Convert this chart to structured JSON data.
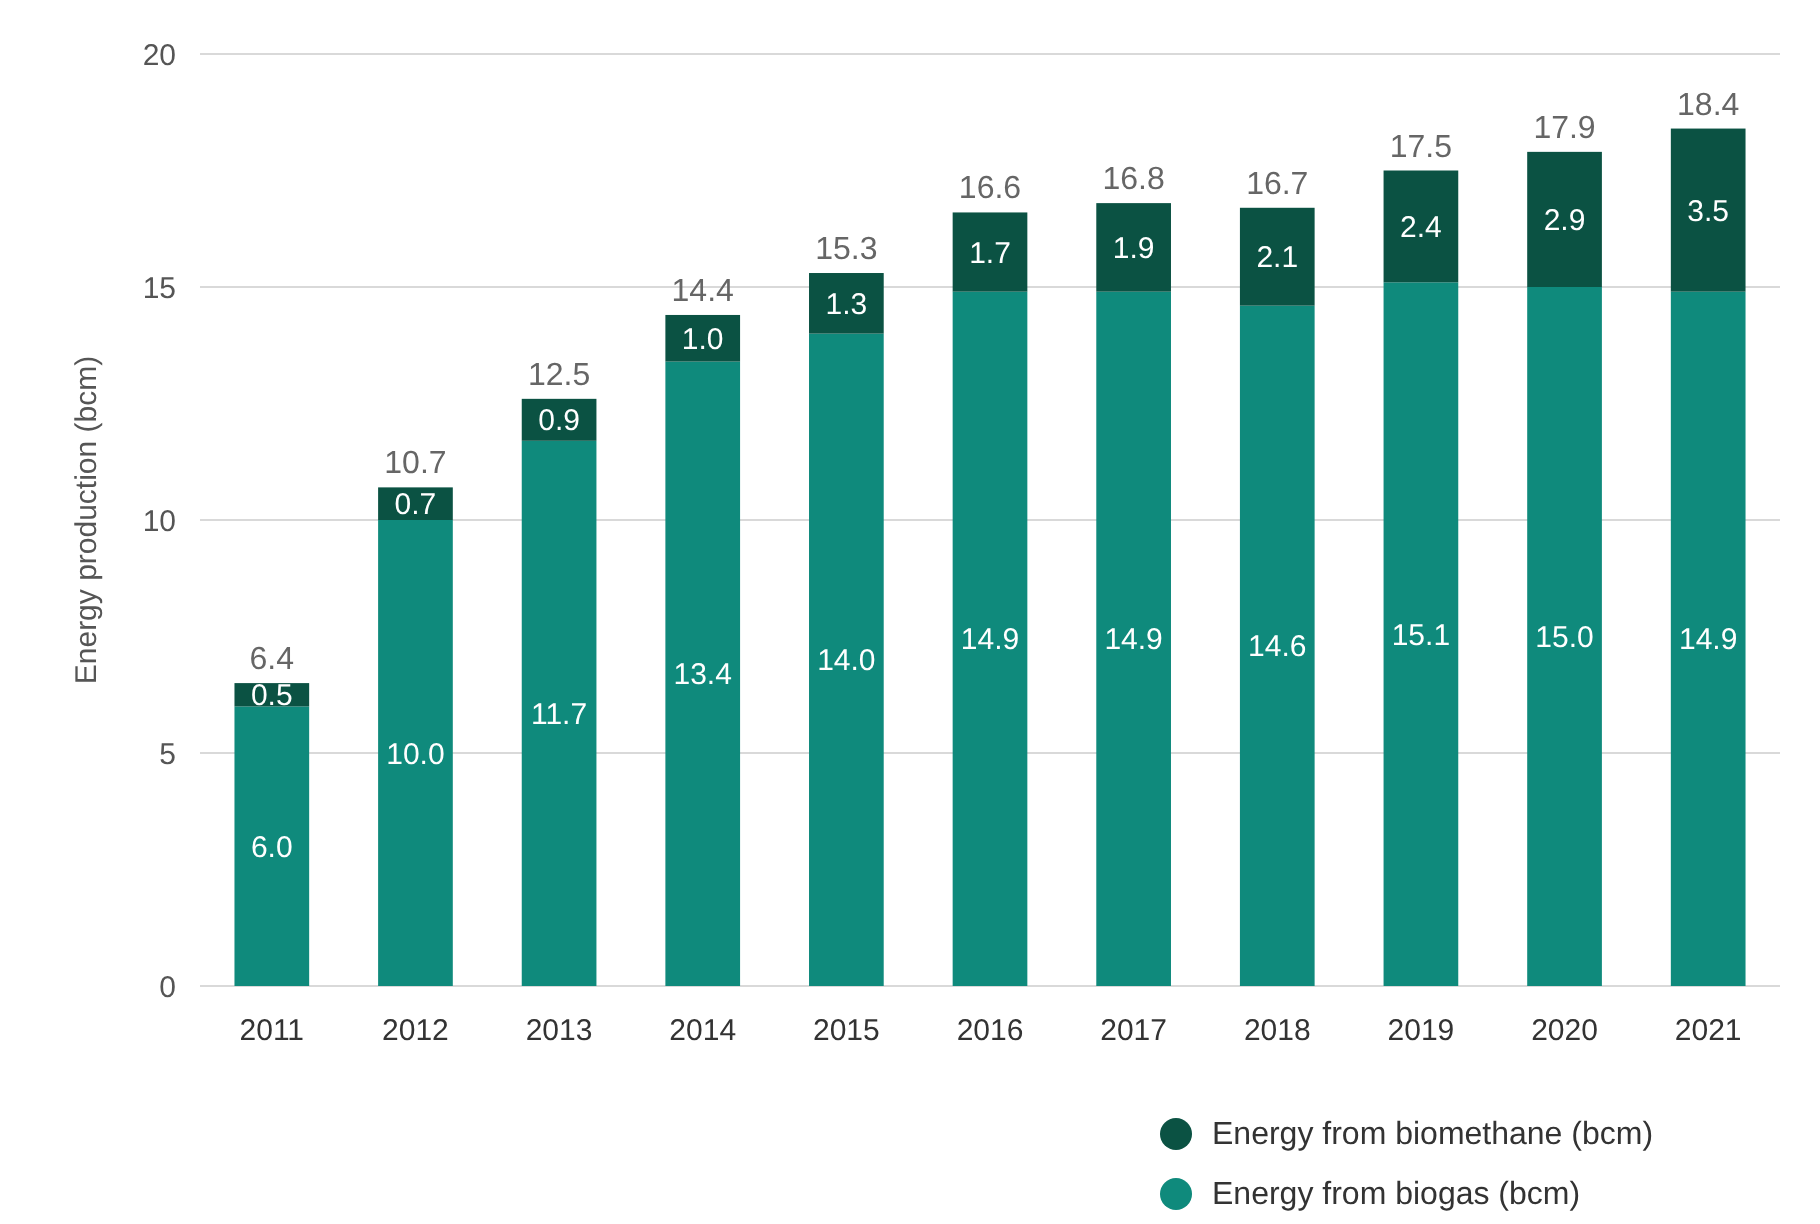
{
  "chart_data": {
    "type": "bar",
    "stacked": true,
    "ylabel": "Energy production (bcm)",
    "categories": [
      "2011",
      "2012",
      "2013",
      "2014",
      "2015",
      "2016",
      "2017",
      "2018",
      "2019",
      "2020",
      "2021"
    ],
    "series": [
      {
        "name": "Energy from biogas (bcm)",
        "color": "#0f8a7c",
        "values": [
          6.0,
          10.0,
          11.7,
          13.4,
          14.0,
          14.9,
          14.9,
          14.6,
          15.1,
          15.0,
          14.9
        ],
        "value_labels": [
          "6.0",
          "10.0",
          "11.7",
          "13.4",
          "14.0",
          "14.9",
          "14.9",
          "14.6",
          "15.1",
          "15.0",
          "14.9"
        ]
      },
      {
        "name": "Energy from biomethane (bcm)",
        "color": "#0b5243",
        "values": [
          0.5,
          0.7,
          0.9,
          1.0,
          1.3,
          1.7,
          1.9,
          2.1,
          2.4,
          2.9,
          3.5
        ],
        "value_labels": [
          "0.5",
          "0.7",
          "0.9",
          "1.0",
          "1.3",
          "1.7",
          "1.9",
          "2.1",
          "2.4",
          "2.9",
          "3.5"
        ]
      }
    ],
    "totals": [
      "6.4",
      "10.7",
      "12.5",
      "14.4",
      "15.3",
      "16.6",
      "16.8",
      "16.7",
      "17.5",
      "17.9",
      "18.4"
    ],
    "ylim": [
      0,
      20
    ],
    "yticks": [
      0,
      5,
      10,
      15,
      20
    ],
    "grid": "y",
    "legend": "bottom right"
  }
}
